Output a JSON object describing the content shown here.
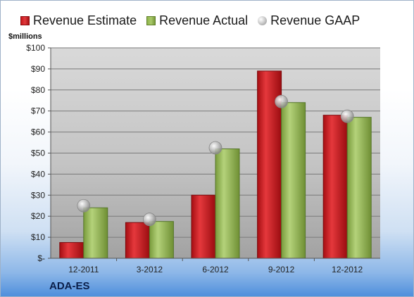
{
  "legend": {
    "estimate": "Revenue Estimate",
    "actual": "Revenue Actual",
    "gaap": "Revenue GAAP"
  },
  "units_label": "$millions",
  "ticker_label": "ADA-ES",
  "colors": {
    "estimate": "#c8181c",
    "actual": "#8fb44a",
    "gaap": "#a8a8a8",
    "plot_background_top": "#d8d8d8",
    "plot_background_bottom": "#9e9e9e"
  },
  "chart_data": {
    "type": "bar",
    "categories": [
      "12-2011",
      "3-2012",
      "6-2012",
      "9-2012",
      "12-2012"
    ],
    "series": [
      {
        "name": "Revenue Estimate",
        "kind": "bar",
        "values": [
          7.5,
          17,
          30,
          89,
          68
        ]
      },
      {
        "name": "Revenue Actual",
        "kind": "bar",
        "values": [
          24,
          17.5,
          52,
          74,
          67
        ]
      },
      {
        "name": "Revenue GAAP",
        "kind": "marker",
        "values": [
          25,
          18.5,
          52.5,
          74.5,
          67.5
        ]
      }
    ],
    "ylim": [
      0,
      100
    ],
    "yticks": [
      0,
      10,
      20,
      30,
      40,
      50,
      60,
      70,
      80,
      90,
      100
    ],
    "ytick_labels": [
      "$-",
      "$10",
      "$20",
      "$30",
      "$40",
      "$50",
      "$60",
      "$70",
      "$80",
      "$90",
      "$100"
    ],
    "ylabel": "$millions",
    "grid": true,
    "legend_position": "top"
  }
}
